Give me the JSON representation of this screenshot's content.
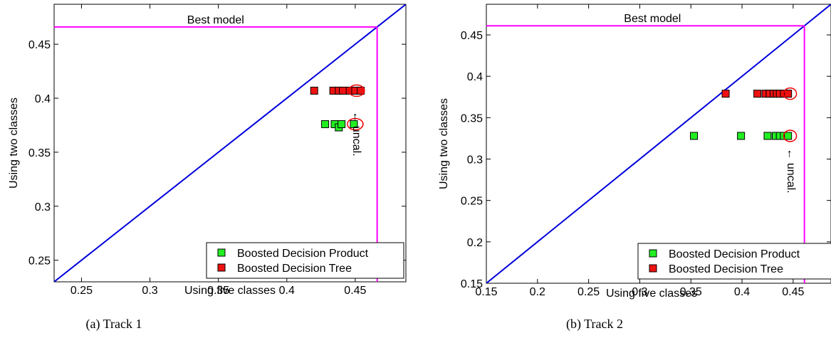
{
  "chart_data": [
    {
      "type": "scatter",
      "caption": "(a)  Track 1",
      "xlabel": "Using five classes",
      "ylabel": "Using two classes",
      "xlim": [
        0.23,
        0.487
      ],
      "ylim": [
        0.23,
        0.487
      ],
      "xticks": [
        "0.25",
        "0.3",
        "0.35",
        "0.4",
        "0.45"
      ],
      "yticks": [
        "0.25",
        "0.3",
        "0.35",
        "0.4",
        "0.45"
      ],
      "diagonal": true,
      "best_model": {
        "label": "Best model",
        "x": 0.466,
        "y": 0.466,
        "color": "#ff00ff"
      },
      "annotation": "← uncal.",
      "legend": {
        "placement": "bottom-right"
      },
      "series": [
        {
          "name": "Boosted Decision Product",
          "color": "#22ee22",
          "points": [
            [
              0.428,
              0.376
            ],
            [
              0.435,
              0.376
            ],
            [
              0.438,
              0.373
            ],
            [
              0.44,
              0.376
            ],
            [
              0.449,
              0.376
            ]
          ],
          "circled": [
            [
              0.45,
              0.376
            ]
          ]
        },
        {
          "name": "Boosted Decision Tree",
          "color": "#ee1111",
          "points": [
            [
              0.42,
              0.407
            ],
            [
              0.434,
              0.407
            ],
            [
              0.438,
              0.407
            ],
            [
              0.441,
              0.407
            ],
            [
              0.446,
              0.407
            ],
            [
              0.45,
              0.407
            ],
            [
              0.454,
              0.407
            ]
          ],
          "circled": [
            [
              0.451,
              0.407
            ]
          ]
        }
      ]
    },
    {
      "type": "scatter",
      "caption": "(b)  Track 2",
      "xlabel": "Using five classes",
      "ylabel": "Using two classes",
      "xlim": [
        0.15,
        0.487
      ],
      "ylim": [
        0.15,
        0.487
      ],
      "xticks": [
        "0.15",
        "0.2",
        "0.25",
        "0.3",
        "0.35",
        "0.4",
        "0.45"
      ],
      "yticks": [
        "0.15",
        "0.2",
        "0.25",
        "0.3",
        "0.35",
        "0.4",
        "0.45"
      ],
      "diagonal": true,
      "best_model": {
        "label": "Best model",
        "x": 0.461,
        "y": 0.461,
        "color": "#ff00ff"
      },
      "annotation": "← uncal.",
      "legend": {
        "placement": "bottom-right"
      },
      "series": [
        {
          "name": "Boosted Decision Product",
          "color": "#22ee22",
          "points": [
            [
              0.353,
              0.328
            ],
            [
              0.399,
              0.328
            ],
            [
              0.425,
              0.328
            ],
            [
              0.433,
              0.328
            ],
            [
              0.437,
              0.328
            ],
            [
              0.441,
              0.328
            ],
            [
              0.445,
              0.328
            ]
          ],
          "circled": [
            [
              0.447,
              0.328
            ]
          ]
        },
        {
          "name": "Boosted Decision Tree",
          "color": "#ee1111",
          "points": [
            [
              0.384,
              0.379
            ],
            [
              0.415,
              0.379
            ],
            [
              0.423,
              0.379
            ],
            [
              0.427,
              0.379
            ],
            [
              0.431,
              0.379
            ],
            [
              0.434,
              0.379
            ],
            [
              0.437,
              0.379
            ],
            [
              0.441,
              0.379
            ],
            [
              0.445,
              0.379
            ]
          ],
          "circled": [
            [
              0.447,
              0.379
            ]
          ]
        }
      ]
    }
  ]
}
